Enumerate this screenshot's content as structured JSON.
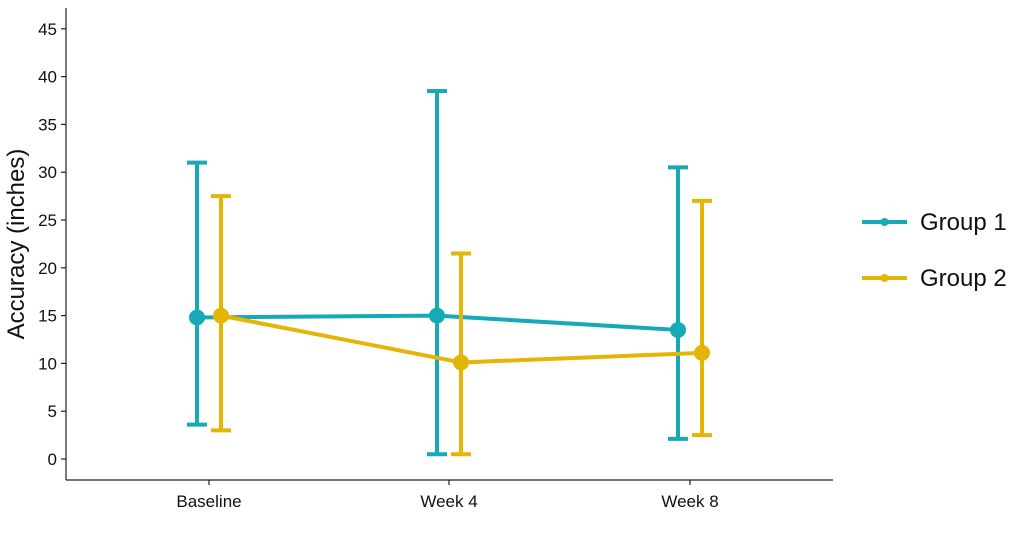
{
  "chart_data": {
    "type": "line",
    "title": "",
    "xlabel": "",
    "ylabel": "Accuracy (inches)",
    "categories": [
      "Baseline",
      "Week 4",
      "Week 8"
    ],
    "ylim": [
      -2,
      47
    ],
    "yticks": [
      0,
      5,
      10,
      15,
      20,
      25,
      30,
      35,
      40,
      45
    ],
    "grid": false,
    "legend_position": "right",
    "error_bars": true,
    "series": [
      {
        "name": "Group 1",
        "color": "#16A9B8",
        "values": [
          14.8,
          15.0,
          13.5
        ],
        "lower": [
          3.6,
          0.5,
          2.1
        ],
        "upper": [
          31.0,
          38.5,
          30.5
        ]
      },
      {
        "name": "Group 2",
        "color": "#E3B505",
        "values": [
          15.0,
          10.1,
          11.1
        ],
        "lower": [
          3.0,
          0.5,
          2.5
        ],
        "upper": [
          27.5,
          21.5,
          27.0
        ]
      }
    ]
  }
}
